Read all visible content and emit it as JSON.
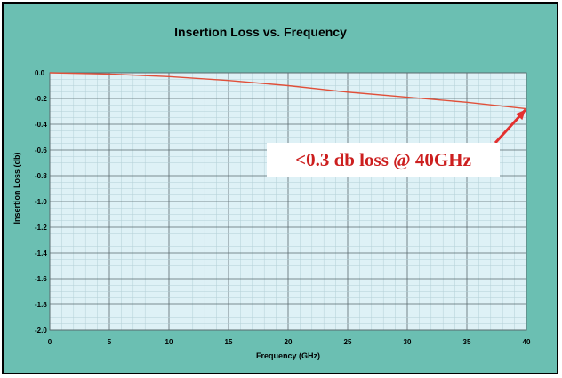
{
  "colors": {
    "background": "#6bbfb2",
    "plot_area": "#def1f6",
    "grid_minor": "#b3cfd6",
    "grid_major": "#5a6a6e",
    "series": "#e0503a",
    "annotation_text": "#cc1f1f",
    "arrow": "#e3302f"
  },
  "chart_data": {
    "type": "line",
    "title": "Insertion Loss vs. Frequency",
    "xlabel": "Frequency (GHz)",
    "ylabel": "Insertion Loss (db)",
    "xlim": [
      0,
      40
    ],
    "ylim": [
      -2.0,
      0.0
    ],
    "x_ticks": [
      "0",
      "5",
      "10",
      "15",
      "20",
      "25",
      "30",
      "35",
      "40"
    ],
    "y_ticks": [
      "0.0",
      "-0.2",
      "-0.4",
      "-0.6",
      "-0.8",
      "-1.0",
      "-1.2",
      "-1.4",
      "-1.6",
      "-1.8",
      "-2.0"
    ],
    "grid": true,
    "series": [
      {
        "x": [
          0,
          5,
          10,
          15,
          20,
          25,
          30,
          35,
          40
        ],
        "y": [
          0.0,
          -0.01,
          -0.03,
          -0.06,
          -0.1,
          -0.15,
          -0.19,
          -0.23,
          -0.28
        ]
      }
    ],
    "annotation": {
      "text": "<0.3 db loss @ 40GHz",
      "points_to": {
        "x": 40,
        "y": -0.28
      }
    }
  }
}
